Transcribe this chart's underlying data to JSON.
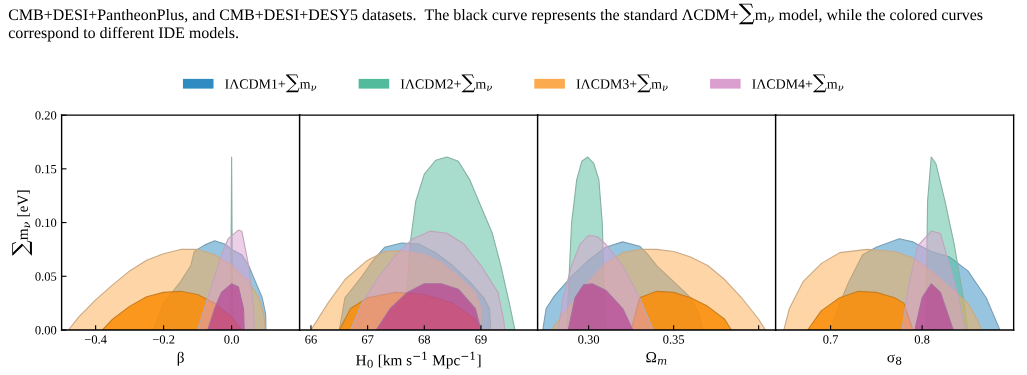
{
  "chart_data": [
    {
      "type": "area",
      "xlabel": "β",
      "ylabel": "∑m$_{ν}$ [eV]",
      "legend": "top",
      "grid": false,
      "annotations": [
        "CMB+DESI+PantheonPlus, and CMB+DESI+DESY5 datasets.  The black curve represents the standard ΛCDM+∑m$_{ν}$ model, while the colored curves correspond to different IDE models."
      ],
      "xlim": [
        -0.5,
        0.2
      ],
      "xticks": [
        {
          "value": -0.4,
          "label": "−0.4"
        },
        {
          "value": -0.2,
          "label": "−0.2"
        },
        {
          "value": 0.0,
          "label": "0.0"
        }
      ],
      "ylim": [
        0,
        0.2
      ],
      "yticks": [
        {
          "value": 0,
          "label": "0.00"
        },
        {
          "value": 0.05,
          "label": "0.05"
        },
        {
          "value": 0.1,
          "label": "0.10"
        },
        {
          "value": 0.15,
          "label": "0.15"
        },
        {
          "value": 0.2,
          "label": "0.20"
        }
      ],
      "series": [
        {
          "name": "IΛCDM1+∑m$_{ν}$",
          "color": "#97c5e0",
          "x": [
            -0.23,
            -0.2,
            -0.15,
            -0.12,
            -0.11,
            -0.08,
            -0.05,
            -0.02,
            0.0,
            0.03,
            0.05,
            0.07,
            0.09,
            0.1,
            0.101
          ],
          "values": [
            0,
            0.025,
            0.045,
            0.06,
            0.073,
            0.079,
            0.083,
            0.08,
            0.075,
            0.07,
            0.06,
            0.045,
            0.03,
            0.015,
            0
          ]
        },
        {
          "name": "IΛCDM2+∑m$_{ν}$",
          "color": "#a8ddcd",
          "x": [
            -0.003,
            0.0,
            0.003
          ],
          "values": [
            0,
            0.161,
            0
          ]
        },
        {
          "name": "IΛCDM3+∑m$_{ν}$",
          "color": "#fdd5a6",
          "x": [
            -0.48,
            -0.45,
            -0.4,
            -0.35,
            -0.3,
            -0.25,
            -0.2,
            -0.15,
            -0.1,
            -0.05,
            0.0,
            0.05,
            0.08,
            0.095,
            0.098
          ],
          "values": [
            0,
            0.012,
            0.028,
            0.042,
            0.055,
            0.065,
            0.071,
            0.075,
            0.075,
            0.07,
            0.06,
            0.045,
            0.03,
            0.015,
            0
          ]
        },
        {
          "color": "#fb9d2a",
          "x": [
            -0.38,
            -0.35,
            -0.3,
            -0.25,
            -0.2,
            -0.15,
            -0.1,
            -0.05,
            0.0,
            0.03
          ],
          "values": [
            0,
            0.01,
            0.022,
            0.031,
            0.035,
            0.036,
            0.033,
            0.025,
            0.012,
            0
          ]
        },
        {
          "name": "IΛCDM4+∑m$_{ν}$",
          "color": "#edcfe7",
          "x": [
            -0.1,
            -0.08,
            -0.05,
            -0.03,
            -0.01,
            0.02,
            0.03,
            0.05,
            0.065,
            0.066
          ],
          "values": [
            0,
            0.02,
            0.05,
            0.07,
            0.085,
            0.093,
            0.092,
            0.06,
            0.02,
            0
          ]
        },
        {
          "color": "#d38ac5",
          "x": [
            -0.07,
            -0.05,
            -0.03,
            0.0,
            0.02,
            0.035,
            0.037
          ],
          "values": [
            0,
            0.02,
            0.035,
            0.043,
            0.04,
            0.02,
            0
          ]
        }
      ]
    },
    {
      "type": "area",
      "xlabel": "H$_{0}$ [km s$^{−1}$ Mpc$^{−1}$]",
      "grid": false,
      "tick_labels": "x",
      "xlim": [
        65.8,
        70
      ],
      "xticks": [
        66,
        67,
        68,
        69
      ],
      "ylim": [
        0,
        0.2
      ],
      "series": [
        {
          "color": "#97c5e0",
          "x": [
            66.5,
            66.6,
            66.9,
            67.1,
            67.3,
            67.6,
            67.9,
            68.2,
            68.5,
            68.8,
            69.05,
            69.15,
            69.17
          ],
          "values": [
            0,
            0.03,
            0.05,
            0.065,
            0.077,
            0.081,
            0.08,
            0.072,
            0.06,
            0.045,
            0.03,
            0.02,
            0
          ]
        },
        {
          "color": "#a8ddcd",
          "x": [
            67.65,
            67.75,
            67.85,
            68.0,
            68.2,
            68.4,
            68.6,
            68.8,
            69.0,
            69.2,
            69.35,
            69.5,
            69.6
          ],
          "values": [
            0,
            0.08,
            0.12,
            0.145,
            0.158,
            0.161,
            0.157,
            0.14,
            0.115,
            0.09,
            0.06,
            0.025,
            0
          ]
        },
        {
          "color": "#fdd5a6",
          "x": [
            66.0,
            66.3,
            66.6,
            67.0,
            67.3,
            67.6,
            68.0,
            68.3,
            68.6,
            68.9,
            69.0,
            69.01
          ],
          "values": [
            0,
            0.025,
            0.047,
            0.065,
            0.073,
            0.074,
            0.07,
            0.063,
            0.05,
            0.035,
            0.02,
            0
          ]
        },
        {
          "color": "#fb9d2a",
          "x": [
            66.5,
            66.7,
            67.0,
            67.5,
            68.0,
            68.5,
            68.9,
            69.0
          ],
          "values": [
            0,
            0.02,
            0.03,
            0.035,
            0.033,
            0.025,
            0.01,
            0
          ]
        },
        {
          "color": "#edcfe7",
          "x": [
            66.7,
            66.9,
            67.2,
            67.5,
            67.8,
            68.1,
            68.4,
            68.7,
            69.0,
            69.3,
            69.4,
            69.42
          ],
          "values": [
            0,
            0.025,
            0.05,
            0.07,
            0.085,
            0.092,
            0.09,
            0.08,
            0.06,
            0.035,
            0.01,
            0
          ]
        },
        {
          "color": "#d38ac5",
          "x": [
            67.15,
            67.4,
            67.7,
            68.0,
            68.3,
            68.6,
            68.9,
            69.0
          ],
          "values": [
            0,
            0.02,
            0.035,
            0.043,
            0.043,
            0.038,
            0.02,
            0
          ]
        }
      ]
    },
    {
      "type": "area",
      "xlabel": "Ω$_{m}$",
      "grid": false,
      "tick_labels": "x",
      "xlim": [
        0.27,
        0.41
      ],
      "xticks": [
        {
          "value": 0.3,
          "label": "0.30"
        },
        {
          "value": 0.35,
          "label": "0.35"
        },
        {
          "value": 0.4,
          "label": null
        }
      ],
      "ylim": [
        0,
        0.2
      ],
      "series": [
        {
          "color": "#97c5e0",
          "x": [
            0.273,
            0.275,
            0.28,
            0.29,
            0.3,
            0.31,
            0.32,
            0.33,
            0.335,
            0.34,
            0.35,
            0.36,
            0.365,
            0.367
          ],
          "values": [
            0,
            0.02,
            0.032,
            0.05,
            0.065,
            0.077,
            0.082,
            0.078,
            0.07,
            0.06,
            0.045,
            0.03,
            0.015,
            0
          ]
        },
        {
          "color": "#a8ddcd",
          "x": [
            0.287,
            0.29,
            0.293,
            0.296,
            0.2995,
            0.303,
            0.306,
            0.308,
            0.31
          ],
          "values": [
            0,
            0.1,
            0.14,
            0.157,
            0.161,
            0.155,
            0.14,
            0.1,
            0
          ]
        },
        {
          "color": "#fdd5a6",
          "x": [
            0.278,
            0.29,
            0.3,
            0.31,
            0.32,
            0.33,
            0.34,
            0.35,
            0.36,
            0.37,
            0.38,
            0.39,
            0.4,
            0.404
          ],
          "values": [
            0,
            0.025,
            0.045,
            0.062,
            0.072,
            0.075,
            0.075,
            0.073,
            0.068,
            0.06,
            0.047,
            0.03,
            0.01,
            0
          ]
        },
        {
          "color": "#fb9d2a",
          "x": [
            0.325,
            0.33,
            0.34,
            0.35,
            0.36,
            0.37,
            0.38,
            0.384
          ],
          "values": [
            0,
            0.03,
            0.036,
            0.035,
            0.03,
            0.022,
            0.01,
            0
          ]
        },
        {
          "color": "#edcfe7",
          "x": [
            0.282,
            0.285,
            0.29,
            0.295,
            0.3,
            0.305,
            0.31,
            0.32,
            0.33,
            0.338
          ],
          "values": [
            0,
            0.03,
            0.06,
            0.08,
            0.088,
            0.087,
            0.08,
            0.06,
            0.03,
            0
          ]
        },
        {
          "color": "#d38ac5",
          "x": [
            0.288,
            0.292,
            0.297,
            0.302,
            0.31,
            0.32,
            0.326
          ],
          "values": [
            0,
            0.03,
            0.042,
            0.043,
            0.037,
            0.02,
            0
          ]
        }
      ]
    },
    {
      "type": "area",
      "xlabel": "σ$_{8}$",
      "grid": false,
      "tick_labels": "x",
      "xlim": [
        0.64,
        0.9
      ],
      "xticks": [
        0.7,
        0.8
      ],
      "ylim": [
        0,
        0.2
      ],
      "series": [
        {
          "color": "#97c5e0",
          "x": [
            0.7,
            0.71,
            0.72,
            0.735,
            0.75,
            0.775,
            0.79,
            0.81,
            0.83,
            0.85,
            0.87,
            0.885
          ],
          "values": [
            0,
            0.025,
            0.045,
            0.07,
            0.077,
            0.085,
            0.082,
            0.073,
            0.068,
            0.055,
            0.03,
            0
          ]
        },
        {
          "color": "#a8ddcd",
          "x": [
            0.804,
            0.806,
            0.81,
            0.815,
            0.825,
            0.835,
            0.845,
            0.85
          ],
          "values": [
            0,
            0.12,
            0.161,
            0.155,
            0.12,
            0.08,
            0.03,
            0
          ]
        },
        {
          "color": "#fdd5a6",
          "x": [
            0.649,
            0.655,
            0.67,
            0.69,
            0.71,
            0.74,
            0.77,
            0.79,
            0.81,
            0.83,
            0.85,
            0.86,
            0.865
          ],
          "values": [
            0,
            0.02,
            0.045,
            0.062,
            0.072,
            0.075,
            0.073,
            0.067,
            0.055,
            0.04,
            0.025,
            0.01,
            0
          ]
        },
        {
          "color": "#fb9d2a",
          "x": [
            0.675,
            0.69,
            0.71,
            0.73,
            0.75,
            0.77,
            0.78,
            0.79
          ],
          "values": [
            0,
            0.018,
            0.03,
            0.036,
            0.035,
            0.03,
            0.025,
            0
          ]
        },
        {
          "color": "#edcfe7",
          "x": [
            0.778,
            0.785,
            0.795,
            0.81,
            0.82,
            0.83,
            0.84,
            0.847
          ],
          "values": [
            0,
            0.04,
            0.078,
            0.092,
            0.09,
            0.06,
            0.03,
            0
          ]
        },
        {
          "color": "#d38ac5",
          "x": [
            0.792,
            0.8,
            0.81,
            0.82,
            0.83,
            0.834
          ],
          "values": [
            0,
            0.03,
            0.043,
            0.035,
            0.01,
            0
          ]
        }
      ]
    }
  ]
}
